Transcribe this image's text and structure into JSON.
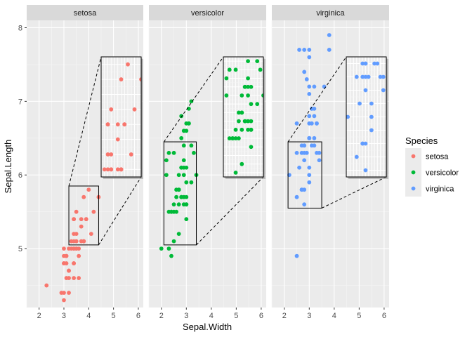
{
  "chart_data": {
    "type": "scatter",
    "title": "",
    "xlabel": "Sepal.Width",
    "ylabel": "Sepal.Length",
    "xlim": [
      1.5,
      6.2
    ],
    "ylim": [
      4.2,
      8.1
    ],
    "x_ticks": [
      2,
      3,
      4,
      5,
      6
    ],
    "y_ticks": [
      5,
      6,
      7,
      8
    ],
    "grid": true,
    "legend": {
      "title": "Species",
      "position": "right",
      "entries": [
        {
          "label": "setosa",
          "color": "#F8766D"
        },
        {
          "label": "versicolor",
          "color": "#00BA38"
        },
        {
          "label": "virginica",
          "color": "#619CFF"
        }
      ]
    },
    "facets": [
      {
        "label": "setosa",
        "color": "#F8766D",
        "points": [
          [
            3.5,
            5.1
          ],
          [
            3.0,
            4.9
          ],
          [
            3.2,
            4.7
          ],
          [
            3.1,
            4.6
          ],
          [
            3.6,
            5.0
          ],
          [
            3.9,
            5.4
          ],
          [
            3.4,
            4.6
          ],
          [
            3.4,
            5.0
          ],
          [
            2.9,
            4.4
          ],
          [
            3.1,
            4.9
          ],
          [
            3.7,
            5.4
          ],
          [
            3.4,
            4.8
          ],
          [
            3.0,
            4.8
          ],
          [
            3.0,
            4.3
          ],
          [
            4.0,
            5.8
          ],
          [
            4.4,
            5.7
          ],
          [
            3.9,
            5.4
          ],
          [
            3.5,
            5.1
          ],
          [
            3.8,
            5.7
          ],
          [
            3.8,
            5.1
          ],
          [
            3.4,
            5.4
          ],
          [
            3.7,
            5.1
          ],
          [
            3.6,
            4.6
          ],
          [
            3.3,
            5.1
          ],
          [
            3.4,
            4.8
          ],
          [
            3.0,
            5.0
          ],
          [
            3.4,
            5.0
          ],
          [
            3.5,
            5.2
          ],
          [
            3.4,
            5.2
          ],
          [
            3.2,
            4.7
          ],
          [
            3.1,
            4.8
          ],
          [
            3.4,
            5.4
          ],
          [
            4.1,
            5.2
          ],
          [
            4.2,
            5.5
          ],
          [
            3.1,
            4.9
          ],
          [
            3.2,
            5.0
          ],
          [
            3.5,
            5.5
          ],
          [
            3.6,
            4.9
          ],
          [
            3.0,
            4.4
          ],
          [
            3.4,
            5.1
          ],
          [
            3.5,
            5.0
          ],
          [
            2.3,
            4.5
          ],
          [
            3.2,
            4.4
          ],
          [
            3.5,
            5.0
          ],
          [
            3.8,
            5.1
          ],
          [
            3.0,
            4.8
          ],
          [
            3.8,
            5.1
          ],
          [
            3.2,
            4.6
          ],
          [
            3.7,
            5.3
          ],
          [
            3.3,
            5.0
          ]
        ],
        "zoom": {
          "xlim": [
            3.2,
            4.4
          ],
          "ylim": [
            5.05,
            5.85
          ]
        }
      },
      {
        "label": "versicolor",
        "color": "#00BA38",
        "points": [
          [
            3.2,
            7.0
          ],
          [
            3.2,
            6.4
          ],
          [
            3.1,
            6.9
          ],
          [
            2.3,
            5.5
          ],
          [
            2.8,
            6.5
          ],
          [
            2.8,
            5.7
          ],
          [
            3.3,
            6.3
          ],
          [
            2.4,
            4.9
          ],
          [
            2.9,
            6.6
          ],
          [
            2.7,
            5.2
          ],
          [
            2.0,
            5.0
          ],
          [
            3.0,
            5.9
          ],
          [
            2.2,
            6.0
          ],
          [
            2.9,
            6.1
          ],
          [
            2.9,
            5.6
          ],
          [
            3.1,
            6.7
          ],
          [
            3.0,
            5.6
          ],
          [
            2.7,
            5.8
          ],
          [
            2.2,
            6.2
          ],
          [
            2.5,
            5.6
          ],
          [
            3.2,
            5.9
          ],
          [
            2.8,
            6.1
          ],
          [
            2.5,
            6.3
          ],
          [
            2.8,
            6.1
          ],
          [
            2.9,
            6.4
          ],
          [
            3.0,
            6.6
          ],
          [
            2.8,
            6.8
          ],
          [
            3.0,
            6.7
          ],
          [
            2.9,
            6.0
          ],
          [
            2.6,
            5.7
          ],
          [
            2.4,
            5.5
          ],
          [
            2.4,
            5.5
          ],
          [
            2.7,
            5.8
          ],
          [
            2.7,
            6.0
          ],
          [
            3.0,
            5.4
          ],
          [
            3.4,
            6.0
          ],
          [
            3.1,
            6.7
          ],
          [
            2.3,
            6.3
          ],
          [
            3.0,
            5.6
          ],
          [
            2.5,
            5.5
          ],
          [
            2.6,
            5.5
          ],
          [
            3.0,
            6.1
          ],
          [
            2.6,
            5.8
          ],
          [
            2.3,
            5.0
          ],
          [
            2.7,
            5.6
          ],
          [
            3.0,
            5.7
          ],
          [
            2.9,
            5.7
          ],
          [
            2.9,
            6.2
          ],
          [
            2.5,
            5.1
          ],
          [
            2.8,
            5.7
          ]
        ],
        "zoom": {
          "xlim": [
            2.1,
            3.4
          ],
          "ylim": [
            5.05,
            6.45
          ]
        }
      },
      {
        "label": "virginica",
        "color": "#619CFF",
        "points": [
          [
            3.3,
            6.3
          ],
          [
            2.7,
            5.8
          ],
          [
            3.0,
            7.1
          ],
          [
            2.9,
            6.3
          ],
          [
            3.0,
            6.5
          ],
          [
            3.0,
            7.6
          ],
          [
            2.5,
            4.9
          ],
          [
            2.9,
            7.3
          ],
          [
            2.5,
            6.7
          ],
          [
            3.6,
            7.2
          ],
          [
            3.2,
            6.5
          ],
          [
            2.7,
            6.4
          ],
          [
            3.0,
            6.8
          ],
          [
            2.5,
            5.7
          ],
          [
            2.8,
            5.8
          ],
          [
            3.2,
            6.4
          ],
          [
            3.0,
            6.5
          ],
          [
            3.8,
            7.7
          ],
          [
            2.6,
            7.7
          ],
          [
            2.2,
            6.0
          ],
          [
            3.2,
            6.9
          ],
          [
            2.8,
            5.6
          ],
          [
            2.8,
            7.7
          ],
          [
            2.7,
            6.3
          ],
          [
            3.3,
            6.7
          ],
          [
            3.2,
            7.2
          ],
          [
            2.8,
            6.2
          ],
          [
            3.0,
            6.1
          ],
          [
            2.8,
            6.4
          ],
          [
            3.0,
            7.2
          ],
          [
            2.8,
            7.4
          ],
          [
            3.8,
            7.9
          ],
          [
            2.8,
            6.4
          ],
          [
            2.8,
            6.3
          ],
          [
            2.6,
            6.1
          ],
          [
            3.0,
            7.7
          ],
          [
            3.4,
            6.3
          ],
          [
            3.1,
            6.4
          ],
          [
            3.0,
            6.0
          ],
          [
            3.1,
            6.9
          ],
          [
            3.1,
            6.7
          ],
          [
            3.1,
            6.9
          ],
          [
            2.7,
            5.8
          ],
          [
            3.2,
            6.8
          ],
          [
            3.3,
            6.7
          ],
          [
            3.0,
            6.7
          ],
          [
            2.5,
            6.3
          ],
          [
            3.0,
            6.5
          ],
          [
            3.4,
            6.2
          ],
          [
            3.0,
            5.9
          ]
        ],
        "zoom": {
          "xlim": [
            2.15,
            3.5
          ],
          "ylim": [
            5.55,
            6.45
          ]
        }
      }
    ]
  }
}
